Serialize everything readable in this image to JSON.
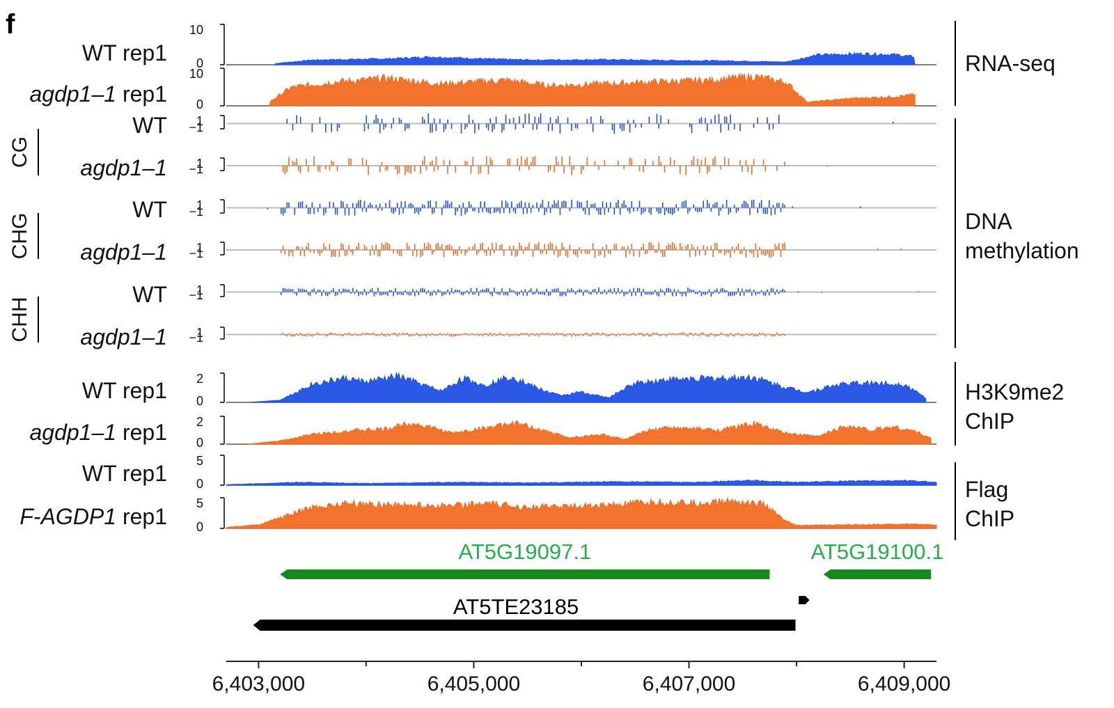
{
  "panel_label": "f",
  "colors": {
    "wt": "#1f4fe6",
    "mutant": "#f26a21",
    "gene": "#138a1a",
    "te": "#000000",
    "gene_label": "#23b04a"
  },
  "chart_data": {
    "type": "area",
    "region": [
      6402700,
      6409300
    ],
    "tracks": [
      {
        "label": "WT rep1",
        "italic": "",
        "ticks": [
          "10",
          "0"
        ],
        "color": "wt",
        "kind": "signal",
        "baseline": 0,
        "profile": [
          [
            6403150,
            0.3
          ],
          [
            6403500,
            1.2
          ],
          [
            6403700,
            1.3
          ],
          [
            6404200,
            1.5
          ],
          [
            6404600,
            2.0
          ],
          [
            6405200,
            1.4
          ],
          [
            6405600,
            1.2
          ],
          [
            6406200,
            1.3
          ],
          [
            6406800,
            1.1
          ],
          [
            6407300,
            1.0
          ],
          [
            6407900,
            0.7
          ],
          [
            6408200,
            2.5
          ],
          [
            6408600,
            2.8
          ],
          [
            6408900,
            2.6
          ],
          [
            6409100,
            2.0
          ]
        ]
      },
      {
        "label": " rep1",
        "italic": "agdp1–1",
        "ticks": [
          "10",
          "0"
        ],
        "color": "mutant",
        "kind": "signal",
        "baseline": 0,
        "profile": [
          [
            6403100,
            1.0
          ],
          [
            6403300,
            5.0
          ],
          [
            6403700,
            6.5
          ],
          [
            6404200,
            7.5
          ],
          [
            6404700,
            6.0
          ],
          [
            6405300,
            7.0
          ],
          [
            6405700,
            5.5
          ],
          [
            6406200,
            6.0
          ],
          [
            6406700,
            6.5
          ],
          [
            6407200,
            7.0
          ],
          [
            6407600,
            8.0
          ],
          [
            6407900,
            6.5
          ],
          [
            6408100,
            1.0
          ],
          [
            6408500,
            2.0
          ],
          [
            6408900,
            2.5
          ],
          [
            6409100,
            3.0
          ]
        ]
      },
      {
        "label": "WT",
        "italic": "",
        "ticks": [
          "1",
          "−1"
        ],
        "color": "wt",
        "kind": "meth",
        "context": "CG",
        "baseline": 0
      },
      {
        "label": "",
        "italic": "agdp1–1",
        "ticks": [
          "1",
          "−1"
        ],
        "color": "mutant",
        "kind": "meth",
        "context": "CG",
        "baseline": 0
      },
      {
        "label": "WT",
        "italic": "",
        "ticks": [
          "1",
          "−1"
        ],
        "color": "wt",
        "kind": "meth",
        "context": "CHG",
        "baseline": 0
      },
      {
        "label": "",
        "italic": "agdp1–1",
        "ticks": [
          "1",
          "−1"
        ],
        "color": "mutant",
        "kind": "meth",
        "context": "CHG",
        "baseline": 0
      },
      {
        "label": "WT",
        "italic": "",
        "ticks": [
          "1",
          "−1"
        ],
        "color": "wt",
        "kind": "meth",
        "context": "CHH",
        "baseline": 0
      },
      {
        "label": "",
        "italic": "agdp1–1",
        "ticks": [
          "1",
          "−1"
        ],
        "color": "mutant",
        "kind": "meth",
        "context": "CHH",
        "baseline": 0
      },
      {
        "label": "WT rep1",
        "italic": "",
        "ticks": [
          "2",
          "0"
        ],
        "color": "wt",
        "kind": "signal",
        "baseline": 0,
        "profile": [
          [
            6402900,
            0.0
          ],
          [
            6403200,
            0.2
          ],
          [
            6403500,
            1.6
          ],
          [
            6403800,
            2.1
          ],
          [
            6404000,
            1.8
          ],
          [
            6404300,
            2.3
          ],
          [
            6404600,
            1.3
          ],
          [
            6404700,
            1.0
          ],
          [
            6404900,
            2.1
          ],
          [
            6405100,
            1.5
          ],
          [
            6405350,
            2.3
          ],
          [
            6405600,
            1.2
          ],
          [
            6405800,
            0.6
          ],
          [
            6406000,
            0.9
          ],
          [
            6406250,
            0.4
          ],
          [
            6406500,
            1.7
          ],
          [
            6406800,
            2.0
          ],
          [
            6407200,
            2.1
          ],
          [
            6407600,
            2.2
          ],
          [
            6407900,
            1.3
          ],
          [
            6408100,
            0.9
          ],
          [
            6408400,
            1.6
          ],
          [
            6408700,
            1.7
          ],
          [
            6409000,
            1.6
          ],
          [
            6409200,
            0.4
          ]
        ]
      },
      {
        "label": " rep1",
        "italic": "agdp1–1",
        "ticks": [
          "2",
          "0"
        ],
        "color": "mutant",
        "kind": "signal",
        "baseline": 0,
        "profile": [
          [
            6402900,
            0.0
          ],
          [
            6403200,
            0.3
          ],
          [
            6403500,
            0.9
          ],
          [
            6403800,
            1.2
          ],
          [
            6404200,
            1.4
          ],
          [
            6404400,
            2.0
          ],
          [
            6404700,
            1.3
          ],
          [
            6404800,
            1.0
          ],
          [
            6405100,
            1.5
          ],
          [
            6405400,
            1.9
          ],
          [
            6405700,
            1.1
          ],
          [
            6405900,
            0.6
          ],
          [
            6406200,
            0.9
          ],
          [
            6406400,
            0.4
          ],
          [
            6406600,
            1.2
          ],
          [
            6406800,
            1.5
          ],
          [
            6407100,
            1.4
          ],
          [
            6407300,
            1.3
          ],
          [
            6407600,
            1.9
          ],
          [
            6407900,
            1.0
          ],
          [
            6408200,
            0.7
          ],
          [
            6408450,
            1.7
          ],
          [
            6408700,
            1.3
          ],
          [
            6408900,
            1.6
          ],
          [
            6409100,
            1.2
          ],
          [
            6409250,
            0.5
          ]
        ]
      },
      {
        "label": "WT rep1",
        "italic": "",
        "ticks": [
          "5",
          "0"
        ],
        "color": "wt",
        "kind": "signal",
        "baseline": 0,
        "profile": [
          [
            6402700,
            0.1
          ],
          [
            6403400,
            0.5
          ],
          [
            6404000,
            0.3
          ],
          [
            6404800,
            0.5
          ],
          [
            6405500,
            0.4
          ],
          [
            6406300,
            0.6
          ],
          [
            6407000,
            0.5
          ],
          [
            6407600,
            0.8
          ],
          [
            6408000,
            0.5
          ],
          [
            6408500,
            0.7
          ],
          [
            6409000,
            0.8
          ],
          [
            6409300,
            0.5
          ]
        ]
      },
      {
        "label": " rep1",
        "italic": "F-AGDP1",
        "ticks": [
          "5",
          "0"
        ],
        "color": "mutant",
        "kind": "signal",
        "baseline": 0,
        "profile": [
          [
            6402700,
            0.2
          ],
          [
            6403000,
            0.6
          ],
          [
            6403200,
            1.8
          ],
          [
            6403500,
            3.5
          ],
          [
            6403800,
            4.2
          ],
          [
            6404200,
            4.0
          ],
          [
            6404700,
            3.8
          ],
          [
            6405100,
            4.1
          ],
          [
            6405500,
            3.6
          ],
          [
            6405900,
            3.7
          ],
          [
            6406300,
            3.9
          ],
          [
            6406700,
            4.4
          ],
          [
            6407100,
            4.2
          ],
          [
            6407400,
            4.6
          ],
          [
            6407700,
            4.0
          ],
          [
            6407900,
            1.2
          ],
          [
            6408000,
            0.5
          ],
          [
            6408500,
            0.6
          ],
          [
            6409000,
            0.7
          ],
          [
            6409300,
            0.6
          ]
        ]
      }
    ],
    "groups": [
      {
        "label": "RNA-seq",
        "label2": "",
        "tracks": [
          0,
          1
        ]
      },
      {
        "label": "DNA",
        "label2": "methylation",
        "tracks": [
          2,
          7
        ]
      },
      {
        "label": "H3K9me2",
        "label2": "ChIP",
        "tracks": [
          8,
          9
        ]
      },
      {
        "label": "Flag",
        "label2": "ChIP",
        "tracks": [
          10,
          11
        ]
      }
    ],
    "contexts": [
      "CG",
      "CHG",
      "CHH"
    ],
    "features": [
      {
        "name": "AT5G19097.1",
        "start": 6403200,
        "end": 6407750,
        "strand": "-",
        "type": "gene"
      },
      {
        "name": "AT5G19100.1",
        "start": 6408250,
        "end": 6409250,
        "strand": "-",
        "type": "gene"
      },
      {
        "name": "AT5TE23185",
        "start": 6402950,
        "end": 6407990,
        "strand": "-",
        "type": "te"
      },
      {
        "name": "",
        "start": 6408020,
        "end": 6408120,
        "strand": "+",
        "type": "te"
      }
    ],
    "x_ticks": [
      {
        "value": 6403000,
        "label": "6,403,000"
      },
      {
        "value": 6405000,
        "label": "6,405,000"
      },
      {
        "value": 6407000,
        "label": "6,407,000"
      },
      {
        "value": 6409000,
        "label": "6,409,000"
      }
    ],
    "x_minor_ticks": [
      6404000,
      6406000,
      6408000
    ]
  }
}
